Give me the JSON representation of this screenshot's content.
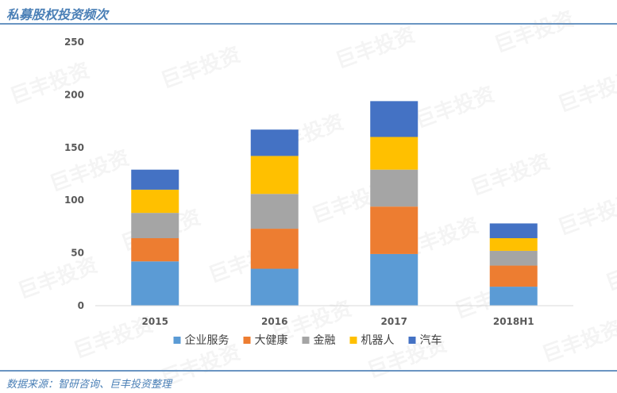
{
  "header": {
    "title": "私募股权投资频次"
  },
  "footer": {
    "source": "数据来源：智研咨询、巨丰投资整理"
  },
  "watermark": {
    "text": "巨丰投资"
  },
  "colors": {
    "header_line": "#6a95c2",
    "text_blue": "#4a7fb6",
    "axis": "#d9d9d9"
  },
  "chart_data": {
    "type": "bar",
    "stacked": true,
    "title": "",
    "xlabel": "",
    "ylabel": "",
    "categories": [
      "2015",
      "2016",
      "2017",
      "2018H1"
    ],
    "ylim": [
      0,
      250
    ],
    "yticks": [
      0,
      50,
      100,
      150,
      200,
      250
    ],
    "grid": false,
    "legend_position": "bottom",
    "series": [
      {
        "name": "企业服务",
        "color": "#5b9bd5",
        "values": [
          42,
          35,
          49,
          18
        ]
      },
      {
        "name": "大健康",
        "color": "#ed7d31",
        "values": [
          22,
          38,
          45,
          20
        ]
      },
      {
        "name": "金融",
        "color": "#a5a5a5",
        "values": [
          24,
          33,
          35,
          14
        ]
      },
      {
        "name": "机器人",
        "color": "#ffc000",
        "values": [
          22,
          36,
          31,
          12
        ]
      },
      {
        "name": "汽车",
        "color": "#4472c4",
        "values": [
          19,
          25,
          34,
          14
        ]
      }
    ]
  }
}
